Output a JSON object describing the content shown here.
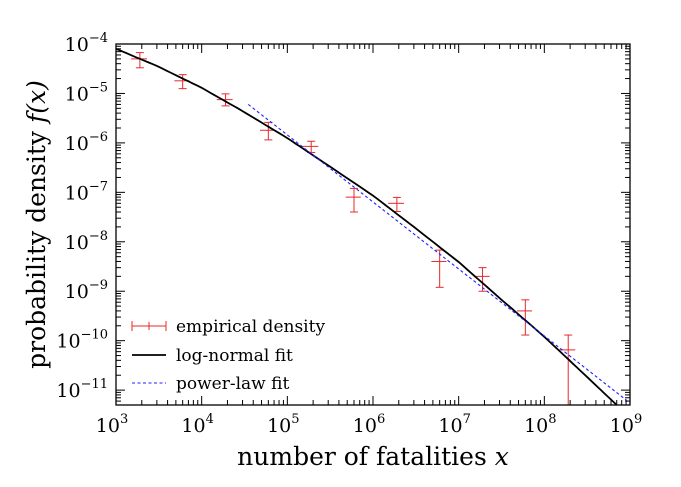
{
  "chart_data": {
    "type": "scatter",
    "x_scale": "log",
    "y_scale": "log",
    "xlim": [
      1000,
      1000000000
    ],
    "ylim": [
      5e-12,
      0.0001
    ],
    "xlabel": "number of fatalities x",
    "xlabel_text": "number of fatalities",
    "xlabel_var": "x",
    "ylabel": "probability density f(x)",
    "ylabel_text": "probability density",
    "ylabel_var": "f(x)",
    "x_ticks": [
      {
        "base": "10",
        "exp": "3",
        "value": 1000
      },
      {
        "base": "10",
        "exp": "4",
        "value": 10000
      },
      {
        "base": "10",
        "exp": "5",
        "value": 100000
      },
      {
        "base": "10",
        "exp": "6",
        "value": 1000000
      },
      {
        "base": "10",
        "exp": "7",
        "value": 10000000
      },
      {
        "base": "10",
        "exp": "8",
        "value": 100000000
      },
      {
        "base": "10",
        "exp": "9",
        "value": 1000000000
      }
    ],
    "y_ticks": [
      {
        "base": "10",
        "exp": "−4",
        "value": 0.0001
      },
      {
        "base": "10",
        "exp": "−5",
        "value": 1e-05
      },
      {
        "base": "10",
        "exp": "−6",
        "value": 1e-06
      },
      {
        "base": "10",
        "exp": "−7",
        "value": 1e-07
      },
      {
        "base": "10",
        "exp": "−8",
        "value": 1e-08
      },
      {
        "base": "10",
        "exp": "−9",
        "value": 1e-09
      },
      {
        "base": "10",
        "exp": "−10",
        "value": 1e-10
      },
      {
        "base": "10",
        "exp": "−11",
        "value": 1e-11
      }
    ],
    "legend_position": "bottom-left",
    "grid": false,
    "series": [
      {
        "name": "empirical density",
        "kind": "errorbar",
        "color": "#e8282b",
        "points": [
          {
            "x": 1900,
            "y": 5e-05,
            "ylo": 3.3e-05,
            "yhi": 6.7e-05,
            "xlo": 1500,
            "xhi": 2300
          },
          {
            "x": 6000,
            "y": 1.8e-05,
            "ylo": 1.25e-05,
            "yhi": 2.4e-05,
            "xlo": 4800,
            "xhi": 7200
          },
          {
            "x": 19000,
            "y": 7.5e-06,
            "ylo": 5.6e-06,
            "yhi": 9.8e-06,
            "xlo": 15000,
            "xhi": 23000
          },
          {
            "x": 60000,
            "y": 1.8e-06,
            "ylo": 1.15e-06,
            "yhi": 2.6e-06,
            "xlo": 48000,
            "xhi": 72000
          },
          {
            "x": 190000,
            "y": 8.5e-07,
            "ylo": 6.4e-07,
            "yhi": 1.08e-06,
            "xlo": 150000,
            "xhi": 230000
          },
          {
            "x": 600000,
            "y": 8e-08,
            "ylo": 4e-08,
            "yhi": 1.2e-07,
            "xlo": 480000,
            "xhi": 720000
          },
          {
            "x": 1900000,
            "y": 6e-08,
            "ylo": 4.1e-08,
            "yhi": 7.9e-08,
            "xlo": 1500000,
            "xhi": 2300000
          },
          {
            "x": 6000000,
            "y": 4e-09,
            "ylo": 1.2e-09,
            "yhi": 6.8e-09,
            "xlo": 4800000,
            "xhi": 7200000
          },
          {
            "x": 19000000,
            "y": 2e-09,
            "ylo": 1e-09,
            "yhi": 3e-09,
            "xlo": 15000000,
            "xhi": 23000000
          },
          {
            "x": 60000000,
            "y": 4e-10,
            "ylo": 1.3e-10,
            "yhi": 6.7e-10,
            "xlo": 48000000,
            "xhi": 72000000
          },
          {
            "x": 190000000,
            "y": 6.5e-11,
            "ylo": 5e-12,
            "yhi": 1.3e-10,
            "xlo": 150000000,
            "xhi": 230000000
          }
        ]
      },
      {
        "name": "log-normal fit",
        "kind": "line",
        "color": "#000000",
        "dash": "solid",
        "x": [
          1000,
          3000,
          10000,
          30000,
          100000,
          300000,
          1000000,
          3000000,
          10000000,
          30000000,
          100000000,
          300000000,
          700000000
        ],
        "y": [
          8e-05,
          3.6e-05,
          1.3e-05,
          4.4e-06,
          1.25e-06,
          3.5e-07,
          8.6e-08,
          2e-08,
          3.9e-09,
          7.3e-10,
          1.2e-10,
          2e-11,
          5e-12
        ]
      },
      {
        "name": "power-law fit",
        "kind": "line",
        "color": "#1f1fff",
        "dash": "dotted",
        "x": [
          35000,
          1000000000
        ],
        "y": [
          6e-06,
          5.5e-12
        ]
      }
    ]
  }
}
